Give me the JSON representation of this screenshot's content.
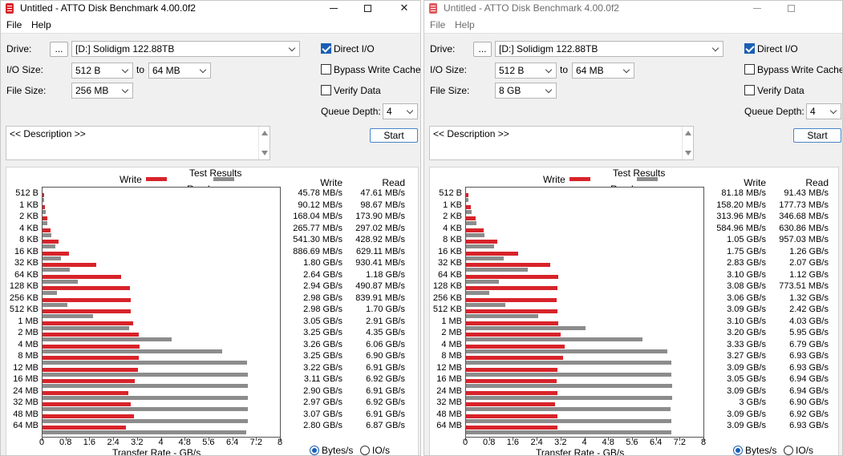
{
  "colors": {
    "write": "#d8232a",
    "read": "#8c8c8c",
    "accent": "#1a5fb4"
  },
  "icons": {
    "app": "atto-disk-icon",
    "minimize": "minimize-icon",
    "maximize": "maximize-icon",
    "close": "close-icon"
  },
  "windows": [
    {
      "title": "Untitled - ATTO Disk Benchmark 4.00.0f2",
      "close_glyph": "✕",
      "menu": {
        "file": "File",
        "help": "Help"
      },
      "drive": {
        "label": "Drive:",
        "browse_label": "...",
        "value": "[D:] Solidigm 122.88TB"
      },
      "io_size": {
        "label": "I/O Size:",
        "from": "512 B",
        "to_label": "to",
        "to": "64 MB"
      },
      "file_size": {
        "label": "File Size:",
        "value": "256 MB"
      },
      "options": {
        "direct_io": {
          "label": "Direct I/O",
          "checked": true
        },
        "bypass_write_cache": {
          "label": "Bypass Write Cache",
          "checked": false
        },
        "verify_data": {
          "label": "Verify Data",
          "checked": false
        }
      },
      "queue_depth": {
        "label": "Queue Depth:",
        "value": "4"
      },
      "start_label": "Start",
      "description": "<< Description >>",
      "results": {
        "title": "Test Results",
        "legend_write": "Write",
        "legend_read": "Read",
        "col_write": "Write",
        "col_read": "Read",
        "rows": [
          {
            "size": "512 B",
            "write_text": "45.78 MB/s",
            "read_text": "47.61 MB/s"
          },
          {
            "size": "1 KB",
            "write_text": "90.12 MB/s",
            "read_text": "98.67 MB/s"
          },
          {
            "size": "2 KB",
            "write_text": "168.04 MB/s",
            "read_text": "173.90 MB/s"
          },
          {
            "size": "4 KB",
            "write_text": "265.77 MB/s",
            "read_text": "297.02 MB/s"
          },
          {
            "size": "8 KB",
            "write_text": "541.30 MB/s",
            "read_text": "428.92 MB/s"
          },
          {
            "size": "16 KB",
            "write_text": "886.69 MB/s",
            "read_text": "629.11 MB/s"
          },
          {
            "size": "32 KB",
            "write_text": "1.80 GB/s",
            "read_text": "930.41 MB/s"
          },
          {
            "size": "64 KB",
            "write_text": "2.64 GB/s",
            "read_text": "1.18 GB/s"
          },
          {
            "size": "128 KB",
            "write_text": "2.94 GB/s",
            "read_text": "490.87 MB/s"
          },
          {
            "size": "256 KB",
            "write_text": "2.98 GB/s",
            "read_text": "839.91 MB/s"
          },
          {
            "size": "512 KB",
            "write_text": "2.98 GB/s",
            "read_text": "1.70 GB/s"
          },
          {
            "size": "1 MB",
            "write_text": "3.05 GB/s",
            "read_text": "2.91 GB/s"
          },
          {
            "size": "2 MB",
            "write_text": "3.25 GB/s",
            "read_text": "4.35 GB/s"
          },
          {
            "size": "4 MB",
            "write_text": "3.26 GB/s",
            "read_text": "6.06 GB/s"
          },
          {
            "size": "8 MB",
            "write_text": "3.25 GB/s",
            "read_text": "6.90 GB/s"
          },
          {
            "size": "12 MB",
            "write_text": "3.22 GB/s",
            "read_text": "6.91 GB/s"
          },
          {
            "size": "16 MB",
            "write_text": "3.11 GB/s",
            "read_text": "6.92 GB/s"
          },
          {
            "size": "24 MB",
            "write_text": "2.90 GB/s",
            "read_text": "6.91 GB/s"
          },
          {
            "size": "32 MB",
            "write_text": "2.97 GB/s",
            "read_text": "6.92 GB/s"
          },
          {
            "size": "48 MB",
            "write_text": "3.07 GB/s",
            "read_text": "6.91 GB/s"
          },
          {
            "size": "64 MB",
            "write_text": "2.80 GB/s",
            "read_text": "6.87 GB/s"
          }
        ],
        "x_ticks": [
          "0",
          "0.8",
          "1.6",
          "2.4",
          "3.2",
          "4",
          "4.8",
          "5.6",
          "6.4",
          "7.2",
          "8"
        ],
        "x_title": "Transfer Rate - GB/s",
        "units": {
          "bytes_label": "Bytes/s",
          "io_label": "IO/s",
          "selected": "bytes"
        }
      },
      "chart_data": {
        "type": "bar",
        "orientation": "horizontal",
        "categories": [
          "512 B",
          "1 KB",
          "2 KB",
          "4 KB",
          "8 KB",
          "16 KB",
          "32 KB",
          "64 KB",
          "128 KB",
          "256 KB",
          "512 KB",
          "1 MB",
          "2 MB",
          "4 MB",
          "8 MB",
          "12 MB",
          "16 MB",
          "24 MB",
          "32 MB",
          "48 MB",
          "64 MB"
        ],
        "series": [
          {
            "name": "Write",
            "values": [
              0.04578,
              0.09012,
              0.16804,
              0.26577,
              0.5413,
              0.88669,
              1.8,
              2.64,
              2.94,
              2.98,
              2.98,
              3.05,
              3.25,
              3.26,
              3.25,
              3.22,
              3.11,
              2.9,
              2.97,
              3.07,
              2.8
            ]
          },
          {
            "name": "Read",
            "values": [
              0.04761,
              0.09867,
              0.1739,
              0.29702,
              0.42892,
              0.62911,
              0.93041,
              1.18,
              0.49087,
              0.83991,
              1.7,
              2.91,
              4.35,
              6.06,
              6.9,
              6.91,
              6.92,
              6.91,
              6.92,
              6.91,
              6.87
            ]
          }
        ],
        "title": "Test Results",
        "xlabel": "Transfer Rate - GB/s",
        "xlim": [
          0,
          8
        ],
        "grid": false,
        "legend": "top"
      }
    },
    {
      "title": "Untitled - ATTO Disk Benchmark 4.00.0f2",
      "close_glyph": "",
      "menu": {
        "file": "File",
        "help": "Help"
      },
      "drive": {
        "label": "Drive:",
        "browse_label": "...",
        "value": "[D:] Solidigm 122.88TB"
      },
      "io_size": {
        "label": "I/O Size:",
        "from": "512 B",
        "to_label": "to",
        "to": "64 MB"
      },
      "file_size": {
        "label": "File Size:",
        "value": "8 GB"
      },
      "options": {
        "direct_io": {
          "label": "Direct I/O",
          "checked": true
        },
        "bypass_write_cache": {
          "label": "Bypass Write Cache",
          "checked": false
        },
        "verify_data": {
          "label": "Verify Data",
          "checked": false
        }
      },
      "queue_depth": {
        "label": "Queue Depth:",
        "value": "4"
      },
      "start_label": "Start",
      "description": "<< Description >>",
      "results": {
        "title": "Test Results",
        "legend_write": "Write",
        "legend_read": "Read",
        "col_write": "Write",
        "col_read": "Read",
        "rows": [
          {
            "size": "512 B",
            "write_text": "81.18 MB/s",
            "read_text": "91.43 MB/s"
          },
          {
            "size": "1 KB",
            "write_text": "158.20 MB/s",
            "read_text": "177.73 MB/s"
          },
          {
            "size": "2 KB",
            "write_text": "313.96 MB/s",
            "read_text": "346.68 MB/s"
          },
          {
            "size": "4 KB",
            "write_text": "584.96 MB/s",
            "read_text": "630.86 MB/s"
          },
          {
            "size": "8 KB",
            "write_text": "1.05 GB/s",
            "read_text": "957.03 MB/s"
          },
          {
            "size": "16 KB",
            "write_text": "1.75 GB/s",
            "read_text": "1.26 GB/s"
          },
          {
            "size": "32 KB",
            "write_text": "2.83 GB/s",
            "read_text": "2.07 GB/s"
          },
          {
            "size": "64 KB",
            "write_text": "3.10 GB/s",
            "read_text": "1.12 GB/s"
          },
          {
            "size": "128 KB",
            "write_text": "3.08 GB/s",
            "read_text": "773.51 MB/s"
          },
          {
            "size": "256 KB",
            "write_text": "3.06 GB/s",
            "read_text": "1.32 GB/s"
          },
          {
            "size": "512 KB",
            "write_text": "3.09 GB/s",
            "read_text": "2.42 GB/s"
          },
          {
            "size": "1 MB",
            "write_text": "3.10 GB/s",
            "read_text": "4.03 GB/s"
          },
          {
            "size": "2 MB",
            "write_text": "3.20 GB/s",
            "read_text": "5.95 GB/s"
          },
          {
            "size": "4 MB",
            "write_text": "3.33 GB/s",
            "read_text": "6.79 GB/s"
          },
          {
            "size": "8 MB",
            "write_text": "3.27 GB/s",
            "read_text": "6.93 GB/s"
          },
          {
            "size": "12 MB",
            "write_text": "3.09 GB/s",
            "read_text": "6.93 GB/s"
          },
          {
            "size": "16 MB",
            "write_text": "3.05 GB/s",
            "read_text": "6.94 GB/s"
          },
          {
            "size": "24 MB",
            "write_text": "3.09 GB/s",
            "read_text": "6.94 GB/s"
          },
          {
            "size": "32 MB",
            "write_text": "3 GB/s",
            "read_text": "6.90 GB/s"
          },
          {
            "size": "48 MB",
            "write_text": "3.09 GB/s",
            "read_text": "6.92 GB/s"
          },
          {
            "size": "64 MB",
            "write_text": "3.09 GB/s",
            "read_text": "6.93 GB/s"
          }
        ],
        "x_ticks": [
          "0",
          "0.8",
          "1.6",
          "2.4",
          "3.2",
          "4",
          "4.8",
          "5.6",
          "6.4",
          "7.2",
          "8"
        ],
        "x_title": "Transfer Rate - GB/s",
        "units": {
          "bytes_label": "Bytes/s",
          "io_label": "IO/s",
          "selected": "bytes"
        }
      },
      "chart_data": {
        "type": "bar",
        "orientation": "horizontal",
        "categories": [
          "512 B",
          "1 KB",
          "2 KB",
          "4 KB",
          "8 KB",
          "16 KB",
          "32 KB",
          "64 KB",
          "128 KB",
          "256 KB",
          "512 KB",
          "1 MB",
          "2 MB",
          "4 MB",
          "8 MB",
          "12 MB",
          "16 MB",
          "24 MB",
          "32 MB",
          "48 MB",
          "64 MB"
        ],
        "series": [
          {
            "name": "Write",
            "values": [
              0.08118,
              0.1582,
              0.31396,
              0.58496,
              1.05,
              1.75,
              2.83,
              3.1,
              3.08,
              3.06,
              3.09,
              3.1,
              3.2,
              3.33,
              3.27,
              3.09,
              3.05,
              3.09,
              3.0,
              3.09,
              3.09
            ]
          },
          {
            "name": "Read",
            "values": [
              0.09143,
              0.17773,
              0.34668,
              0.63086,
              0.95703,
              1.26,
              2.07,
              1.12,
              0.77351,
              1.32,
              2.42,
              4.03,
              5.95,
              6.79,
              6.93,
              6.93,
              6.94,
              6.94,
              6.9,
              6.92,
              6.93
            ]
          }
        ],
        "title": "Test Results",
        "xlabel": "Transfer Rate - GB/s",
        "xlim": [
          0,
          8
        ],
        "grid": false,
        "legend": "top"
      }
    }
  ]
}
